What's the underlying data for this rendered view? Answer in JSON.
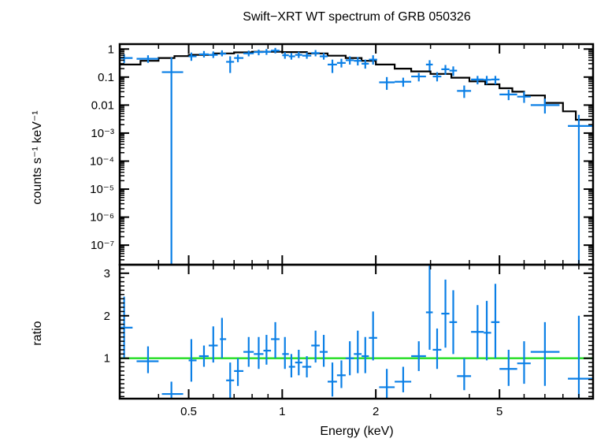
{
  "chart_data": {
    "type": "scatter",
    "title": "Swift−XRT WT spectrum of GRB 050326",
    "xlabel": "Energy (keV)",
    "x_scale": "log",
    "x_range": [
      0.3,
      10
    ],
    "x_ticks": [
      "0.5",
      "1",
      "2",
      "5"
    ],
    "colors": {
      "data": "#0a7fe6",
      "model": "#000000",
      "unity": "#22dd22"
    },
    "top": {
      "ylabel": "counts s⁻¹ keV⁻¹",
      "y_scale": "log",
      "y_range": [
        2e-08,
        1.5
      ],
      "y_ticks": [
        "1",
        "0.1",
        "0.01",
        "10⁻³",
        "10⁻⁴",
        "10⁻⁵",
        "10⁻⁶",
        "10⁻⁷"
      ],
      "data": [
        {
          "x": 0.31,
          "xerr": [
            0.3,
            0.33
          ],
          "y": 0.48,
          "yerr": [
            0.32,
            0.65
          ]
        },
        {
          "x": 0.37,
          "xerr": [
            0.34,
            0.4
          ],
          "y": 0.45,
          "yerr": [
            0.32,
            0.6
          ]
        },
        {
          "x": 0.44,
          "xerr": [
            0.41,
            0.48
          ],
          "y": 0.15,
          "yerr": [
            2e-08,
            0.5
          ]
        },
        {
          "x": 0.51,
          "xerr": [
            0.5,
            0.53
          ],
          "y": 0.55,
          "yerr": [
            0.38,
            0.75
          ]
        },
        {
          "x": 0.56,
          "xerr": [
            0.54,
            0.58
          ],
          "y": 0.65,
          "yerr": [
            0.5,
            0.85
          ]
        },
        {
          "x": 0.6,
          "xerr": [
            0.58,
            0.62
          ],
          "y": 0.62,
          "yerr": [
            0.48,
            0.82
          ]
        },
        {
          "x": 0.64,
          "xerr": [
            0.63,
            0.66
          ],
          "y": 0.68,
          "yerr": [
            0.55,
            0.9
          ]
        },
        {
          "x": 0.68,
          "xerr": [
            0.66,
            0.7
          ],
          "y": 0.35,
          "yerr": [
            0.14,
            0.55
          ]
        },
        {
          "x": 0.72,
          "xerr": [
            0.7,
            0.75
          ],
          "y": 0.48,
          "yerr": [
            0.34,
            0.64
          ]
        },
        {
          "x": 0.78,
          "xerr": [
            0.75,
            0.81
          ],
          "y": 0.7,
          "yerr": [
            0.55,
            0.88
          ]
        },
        {
          "x": 0.84,
          "xerr": [
            0.81,
            0.87
          ],
          "y": 0.78,
          "yerr": [
            0.6,
            0.95
          ]
        },
        {
          "x": 0.89,
          "xerr": [
            0.87,
            0.92
          ],
          "y": 0.8,
          "yerr": [
            0.62,
            1.0
          ]
        },
        {
          "x": 0.95,
          "xerr": [
            0.92,
            0.98
          ],
          "y": 0.88,
          "yerr": [
            0.7,
            1.1
          ]
        },
        {
          "x": 1.02,
          "xerr": [
            1.0,
            1.05
          ],
          "y": 0.6,
          "yerr": [
            0.45,
            0.78
          ]
        },
        {
          "x": 1.07,
          "xerr": [
            1.05,
            1.1
          ],
          "y": 0.55,
          "yerr": [
            0.42,
            0.72
          ]
        },
        {
          "x": 1.13,
          "xerr": [
            1.1,
            1.16
          ],
          "y": 0.62,
          "yerr": [
            0.48,
            0.8
          ]
        },
        {
          "x": 1.2,
          "xerr": [
            1.16,
            1.24
          ],
          "y": 0.58,
          "yerr": [
            0.45,
            0.76
          ]
        },
        {
          "x": 1.28,
          "xerr": [
            1.24,
            1.32
          ],
          "y": 0.72,
          "yerr": [
            0.55,
            0.92
          ]
        },
        {
          "x": 1.36,
          "xerr": [
            1.32,
            1.4
          ],
          "y": 0.55,
          "yerr": [
            0.42,
            0.72
          ]
        },
        {
          "x": 1.45,
          "xerr": [
            1.4,
            1.5
          ],
          "y": 0.28,
          "yerr": [
            0.14,
            0.42
          ]
        },
        {
          "x": 1.55,
          "xerr": [
            1.5,
            1.6
          ],
          "y": 0.32,
          "yerr": [
            0.22,
            0.45
          ]
        },
        {
          "x": 1.65,
          "xerr": [
            1.6,
            1.7
          ],
          "y": 0.4,
          "yerr": [
            0.28,
            0.55
          ]
        },
        {
          "x": 1.75,
          "xerr": [
            1.7,
            1.8
          ],
          "y": 0.38,
          "yerr": [
            0.26,
            0.52
          ]
        },
        {
          "x": 1.85,
          "xerr": [
            1.8,
            1.9
          ],
          "y": 0.3,
          "yerr": [
            0.2,
            0.42
          ]
        },
        {
          "x": 1.96,
          "xerr": [
            1.9,
            2.02
          ],
          "y": 0.42,
          "yerr": [
            0.28,
            0.6
          ]
        },
        {
          "x": 2.17,
          "xerr": [
            2.05,
            2.3
          ],
          "y": 0.065,
          "yerr": [
            0.035,
            0.1
          ]
        },
        {
          "x": 2.45,
          "xerr": [
            2.3,
            2.6
          ],
          "y": 0.068,
          "yerr": [
            0.045,
            0.095
          ]
        },
        {
          "x": 2.75,
          "xerr": [
            2.6,
            2.9
          ],
          "y": 0.105,
          "yerr": [
            0.07,
            0.14
          ]
        },
        {
          "x": 2.98,
          "xerr": [
            2.9,
            3.05
          ],
          "y": 0.28,
          "yerr": [
            0.17,
            0.4
          ]
        },
        {
          "x": 3.15,
          "xerr": [
            3.05,
            3.25
          ],
          "y": 0.105,
          "yerr": [
            0.07,
            0.15
          ]
        },
        {
          "x": 3.35,
          "xerr": [
            3.25,
            3.45
          ],
          "y": 0.19,
          "yerr": [
            0.12,
            0.27
          ]
        },
        {
          "x": 3.55,
          "xerr": [
            3.45,
            3.65
          ],
          "y": 0.17,
          "yerr": [
            0.11,
            0.24
          ]
        },
        {
          "x": 3.85,
          "xerr": [
            3.65,
            4.05
          ],
          "y": 0.032,
          "yerr": [
            0.018,
            0.05
          ]
        },
        {
          "x": 4.25,
          "xerr": [
            4.05,
            4.45
          ],
          "y": 0.082,
          "yerr": [
            0.055,
            0.11
          ]
        },
        {
          "x": 4.55,
          "xerr": [
            4.45,
            4.7
          ],
          "y": 0.08,
          "yerr": [
            0.055,
            0.11
          ]
        },
        {
          "x": 4.85,
          "xerr": [
            4.7,
            5.0
          ],
          "y": 0.082,
          "yerr": [
            0.055,
            0.11
          ]
        },
        {
          "x": 5.35,
          "xerr": [
            5.0,
            5.7
          ],
          "y": 0.024,
          "yerr": [
            0.015,
            0.035
          ]
        },
        {
          "x": 6.0,
          "xerr": [
            5.7,
            6.3
          ],
          "y": 0.02,
          "yerr": [
            0.012,
            0.03
          ]
        },
        {
          "x": 7.0,
          "xerr": [
            6.3,
            7.8
          ],
          "y": 0.01,
          "yerr": [
            0.005,
            0.017
          ]
        },
        {
          "x": 9.0,
          "xerr": [
            8.3,
            10.0
          ],
          "y": 0.0018,
          "yerr": [
            2e-08,
            0.0045
          ]
        }
      ],
      "model": [
        [
          0.3,
          0.28
        ],
        [
          0.35,
          0.38
        ],
        [
          0.4,
          0.48
        ],
        [
          0.45,
          0.56
        ],
        [
          0.5,
          0.62
        ],
        [
          0.6,
          0.7
        ],
        [
          0.7,
          0.76
        ],
        [
          0.8,
          0.8
        ],
        [
          0.9,
          0.8
        ],
        [
          1.0,
          0.78
        ],
        [
          1.2,
          0.7
        ],
        [
          1.4,
          0.58
        ],
        [
          1.6,
          0.48
        ],
        [
          1.8,
          0.38
        ],
        [
          2.0,
          0.28
        ],
        [
          2.3,
          0.2
        ],
        [
          2.6,
          0.16
        ],
        [
          3.0,
          0.13
        ],
        [
          3.5,
          0.095
        ],
        [
          4.0,
          0.07
        ],
        [
          4.5,
          0.055
        ],
        [
          5.0,
          0.04
        ],
        [
          5.5,
          0.03
        ],
        [
          6.0,
          0.022
        ],
        [
          7.0,
          0.012
        ],
        [
          8.0,
          0.006
        ],
        [
          8.8,
          0.003
        ],
        [
          10.0,
          0.0028
        ]
      ]
    },
    "bottom": {
      "ylabel": "ratio",
      "y_scale": "linear",
      "y_range": [
        0.05,
        3.2
      ],
      "y_ticks": [
        1,
        2,
        3
      ],
      "unity_line": 1,
      "data": [
        {
          "x": 0.31,
          "xerr": [
            0.3,
            0.33
          ],
          "y": 1.72,
          "yerr": [
            1.0,
            2.45
          ]
        },
        {
          "x": 0.37,
          "xerr": [
            0.34,
            0.4
          ],
          "y": 0.93,
          "yerr": [
            0.65,
            1.28
          ]
        },
        {
          "x": 0.44,
          "xerr": [
            0.41,
            0.48
          ],
          "y": 0.16,
          "yerr": [
            0.05,
            0.45
          ]
        },
        {
          "x": 0.51,
          "xerr": [
            0.5,
            0.53
          ],
          "y": 0.95,
          "yerr": [
            0.45,
            1.45
          ]
        },
        {
          "x": 0.56,
          "xerr": [
            0.54,
            0.58
          ],
          "y": 1.05,
          "yerr": [
            0.8,
            1.3
          ]
        },
        {
          "x": 0.6,
          "xerr": [
            0.58,
            0.62
          ],
          "y": 1.3,
          "yerr": [
            0.9,
            1.75
          ]
        },
        {
          "x": 0.64,
          "xerr": [
            0.63,
            0.66
          ],
          "y": 1.45,
          "yerr": [
            1.0,
            1.95
          ]
        },
        {
          "x": 0.68,
          "xerr": [
            0.66,
            0.7
          ],
          "y": 0.48,
          "yerr": [
            0.05,
            0.9
          ]
        },
        {
          "x": 0.72,
          "xerr": [
            0.7,
            0.75
          ],
          "y": 0.7,
          "yerr": [
            0.35,
            1.0
          ]
        },
        {
          "x": 0.78,
          "xerr": [
            0.75,
            0.81
          ],
          "y": 1.15,
          "yerr": [
            0.8,
            1.5
          ]
        },
        {
          "x": 0.84,
          "xerr": [
            0.81,
            0.87
          ],
          "y": 1.1,
          "yerr": [
            0.75,
            1.5
          ]
        },
        {
          "x": 0.89,
          "xerr": [
            0.87,
            0.92
          ],
          "y": 1.18,
          "yerr": [
            0.85,
            1.55
          ]
        },
        {
          "x": 0.95,
          "xerr": [
            0.92,
            0.98
          ],
          "y": 1.45,
          "yerr": [
            1.0,
            1.85
          ]
        },
        {
          "x": 1.02,
          "xerr": [
            1.0,
            1.05
          ],
          "y": 1.1,
          "yerr": [
            0.75,
            1.5
          ]
        },
        {
          "x": 1.07,
          "xerr": [
            1.05,
            1.1
          ],
          "y": 0.8,
          "yerr": [
            0.55,
            1.1
          ]
        },
        {
          "x": 1.13,
          "xerr": [
            1.1,
            1.16
          ],
          "y": 0.9,
          "yerr": [
            0.6,
            1.2
          ]
        },
        {
          "x": 1.2,
          "xerr": [
            1.16,
            1.24
          ],
          "y": 0.8,
          "yerr": [
            0.55,
            1.05
          ]
        },
        {
          "x": 1.28,
          "xerr": [
            1.24,
            1.32
          ],
          "y": 1.3,
          "yerr": [
            0.9,
            1.65
          ]
        },
        {
          "x": 1.36,
          "xerr": [
            1.32,
            1.4
          ],
          "y": 1.15,
          "yerr": [
            0.8,
            1.55
          ]
        },
        {
          "x": 1.45,
          "xerr": [
            1.4,
            1.5
          ],
          "y": 0.45,
          "yerr": [
            0.1,
            0.9
          ]
        },
        {
          "x": 1.55,
          "xerr": [
            1.5,
            1.6
          ],
          "y": 0.6,
          "yerr": [
            0.3,
            0.95
          ]
        },
        {
          "x": 1.65,
          "xerr": [
            1.6,
            1.7
          ],
          "y": 1.0,
          "yerr": [
            0.6,
            1.4
          ]
        },
        {
          "x": 1.75,
          "xerr": [
            1.7,
            1.8
          ],
          "y": 1.1,
          "yerr": [
            0.65,
            1.65
          ]
        },
        {
          "x": 1.85,
          "xerr": [
            1.8,
            1.9
          ],
          "y": 1.05,
          "yerr": [
            0.65,
            1.5
          ]
        },
        {
          "x": 1.96,
          "xerr": [
            1.9,
            2.02
          ],
          "y": 1.48,
          "yerr": [
            0.95,
            2.1
          ]
        },
        {
          "x": 2.17,
          "xerr": [
            2.05,
            2.3
          ],
          "y": 0.32,
          "yerr": [
            0.05,
            0.75
          ]
        },
        {
          "x": 2.45,
          "xerr": [
            2.3,
            2.6
          ],
          "y": 0.45,
          "yerr": [
            0.2,
            0.8
          ]
        },
        {
          "x": 2.75,
          "xerr": [
            2.6,
            2.9
          ],
          "y": 1.05,
          "yerr": [
            0.7,
            1.4
          ]
        },
        {
          "x": 2.98,
          "xerr": [
            2.9,
            3.05
          ],
          "y": 2.08,
          "yerr": [
            1.2,
            3.2
          ]
        },
        {
          "x": 3.15,
          "xerr": [
            3.05,
            3.25
          ],
          "y": 1.2,
          "yerr": [
            0.75,
            1.7
          ]
        },
        {
          "x": 3.35,
          "xerr": [
            3.25,
            3.45
          ],
          "y": 2.05,
          "yerr": [
            1.25,
            2.85
          ]
        },
        {
          "x": 3.55,
          "xerr": [
            3.45,
            3.65
          ],
          "y": 1.85,
          "yerr": [
            1.1,
            2.6
          ]
        },
        {
          "x": 3.85,
          "xerr": [
            3.65,
            4.05
          ],
          "y": 0.58,
          "yerr": [
            0.25,
            1.0
          ]
        },
        {
          "x": 4.25,
          "xerr": [
            4.05,
            4.45
          ],
          "y": 1.62,
          "yerr": [
            1.0,
            2.25
          ]
        },
        {
          "x": 4.55,
          "xerr": [
            4.45,
            4.7
          ],
          "y": 1.6,
          "yerr": [
            0.95,
            2.35
          ]
        },
        {
          "x": 4.85,
          "xerr": [
            4.7,
            5.0
          ],
          "y": 1.85,
          "yerr": [
            1.0,
            2.75
          ]
        },
        {
          "x": 5.35,
          "xerr": [
            5.0,
            5.7
          ],
          "y": 0.75,
          "yerr": [
            0.35,
            1.2
          ]
        },
        {
          "x": 6.0,
          "xerr": [
            5.7,
            6.3
          ],
          "y": 0.88,
          "yerr": [
            0.4,
            1.4
          ]
        },
        {
          "x": 7.0,
          "xerr": [
            6.3,
            7.8
          ],
          "y": 1.15,
          "yerr": [
            0.35,
            1.85
          ]
        },
        {
          "x": 9.0,
          "xerr": [
            8.3,
            10.0
          ],
          "y": 0.52,
          "yerr": [
            0.05,
            2.0
          ]
        }
      ]
    }
  }
}
